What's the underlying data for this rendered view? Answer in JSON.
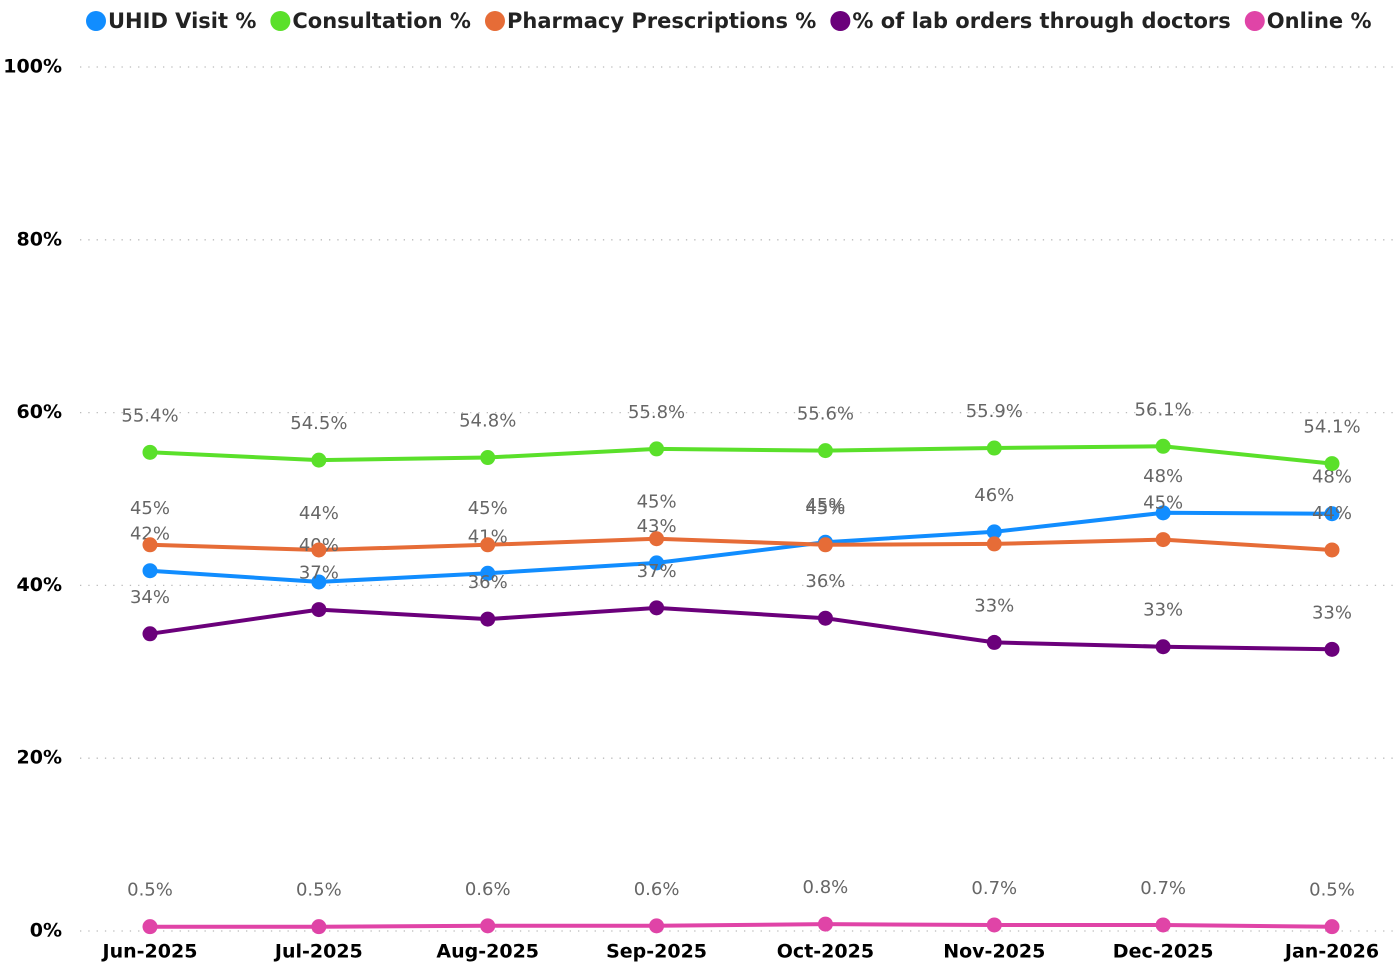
{
  "chart_data": {
    "type": "line",
    "categories": [
      "Jun-2025",
      "Jul-2025",
      "Aug-2025",
      "Sep-2025",
      "Oct-2025",
      "Nov-2025",
      "Dec-2025",
      "Jan-2026"
    ],
    "ylim": [
      0,
      100
    ],
    "yticks": [
      {
        "value": 0,
        "label": "0%"
      },
      {
        "value": 20,
        "label": "20%"
      },
      {
        "value": 40,
        "label": "40%"
      },
      {
        "value": 60,
        "label": "60%"
      },
      {
        "value": 80,
        "label": "80%"
      },
      {
        "value": 100,
        "label": "100%"
      }
    ],
    "grid": true,
    "legend": "top",
    "series": [
      {
        "name": "UHID Visit %",
        "color": "#118dff",
        "values": [
          41.7,
          40.4,
          41.4,
          42.6,
          45.0,
          46.2,
          48.4,
          48.3
        ],
        "value_labels": [
          "42%",
          "40%",
          "41%",
          "43%",
          "45%",
          "46%",
          "48%",
          "48%"
        ]
      },
      {
        "name": "Consultation %",
        "color": "#5ae02a",
        "values": [
          55.4,
          54.5,
          54.8,
          55.8,
          55.6,
          55.9,
          56.1,
          54.1
        ],
        "value_labels": [
          "55.4%",
          "54.5%",
          "54.8%",
          "55.8%",
          "55.6%",
          "55.9%",
          "56.1%",
          "54.1%"
        ]
      },
      {
        "name": "Pharmacy Prescriptions %",
        "color": "#e66c37",
        "values": [
          44.7,
          44.1,
          44.7,
          45.4,
          44.7,
          44.8,
          45.3,
          44.1
        ],
        "value_labels": [
          "45%",
          "44%",
          "45%",
          "45%",
          "45%",
          null,
          "45%",
          "44%"
        ]
      },
      {
        "name": "% of lab orders through doctors",
        "color": "#6b007b",
        "values": [
          34.4,
          37.2,
          36.1,
          37.4,
          36.2,
          33.4,
          32.9,
          32.6
        ],
        "value_labels": [
          "34%",
          "37%",
          "36%",
          "37%",
          "36%",
          "33%",
          "33%",
          "33%"
        ]
      },
      {
        "name": "Online %",
        "color": "#e044a7",
        "values": [
          0.5,
          0.5,
          0.6,
          0.6,
          0.8,
          0.7,
          0.7,
          0.5
        ],
        "value_labels": [
          "0.5%",
          "0.5%",
          "0.6%",
          "0.6%",
          "0.8%",
          "0.7%",
          "0.7%",
          "0.5%"
        ]
      }
    ]
  }
}
